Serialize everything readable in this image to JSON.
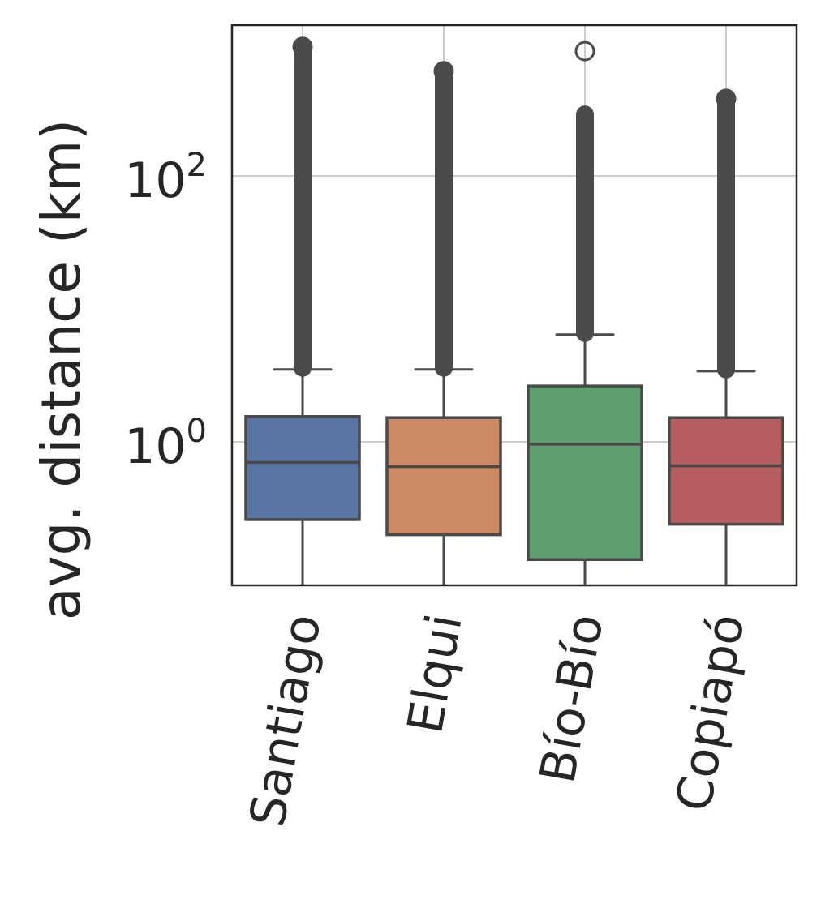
{
  "chart_data": {
    "type": "box",
    "title": "",
    "xlabel": "",
    "ylabel": "avg. distance (km)",
    "yscale": "log",
    "ylim": [
      0.083,
      1350
    ],
    "yticks": [
      {
        "label": "10",
        "exp": "2",
        "value": 100
      },
      {
        "label": "10",
        "exp": "0",
        "value": 1
      }
    ],
    "grid": true,
    "legend": null,
    "categories": [
      "Santiago",
      "Elqui",
      "Bío-Bío",
      "Copiapó"
    ],
    "series": [
      {
        "name": "Santiago",
        "color": "#5975a4",
        "q1": 0.26,
        "median": 0.7,
        "q3": 1.55,
        "whisker_low": 0.083,
        "whisker_high": 3.5,
        "outlier_max": 935
      },
      {
        "name": "Elqui",
        "color": "#cc8963",
        "q1": 0.2,
        "median": 0.65,
        "q3": 1.52,
        "whisker_low": 0.083,
        "whisker_high": 3.5,
        "outlier_max": 614
      },
      {
        "name": "Bío-Bío",
        "color": "#5f9e6e",
        "q1": 0.13,
        "median": 0.96,
        "q3": 2.63,
        "whisker_low": 0.083,
        "whisker_high": 6.4,
        "outlier_max": 868,
        "outlier_cluster_max": 290
      },
      {
        "name": "Copiapó",
        "color": "#b55d60",
        "q1": 0.24,
        "median": 0.66,
        "q3": 1.52,
        "whisker_low": 0.083,
        "whisker_high": 3.4,
        "outlier_max": 380
      }
    ]
  },
  "colors": {
    "axis": "#262626",
    "grid": "#cccccc",
    "box_edge": "#4a4a4a"
  }
}
